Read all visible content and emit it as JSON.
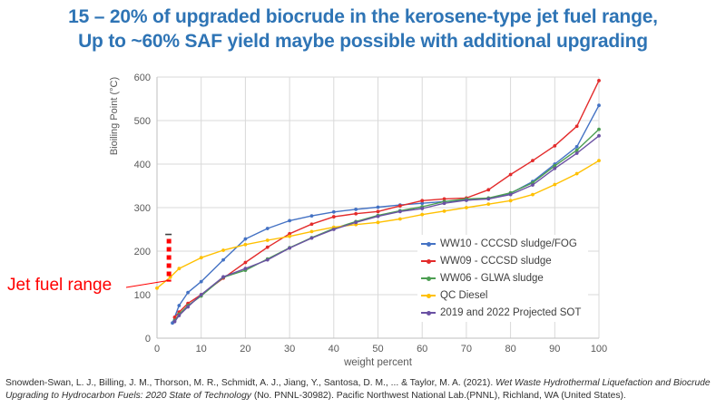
{
  "slide": {
    "title_line1": "15 – 20% of upgraded biocrude in the kerosene-type jet fuel range,",
    "title_line2": "Up to ~60% SAF yield maybe possible with additional upgrading"
  },
  "citation": {
    "part1": "Snowden-Swan, L. J., Billing, J. M., Thorson, M. R., Schmidt, A. J., Jiang, Y., Santosa, D. M., ... & Taylor, M. A. (2021). ",
    "italic": "Wet Waste Hydrothermal Liquefaction and Biocrude Upgrading to Hydrocarbon Fuels: 2020 State of Technology",
    "part2": " (No. PNNL-30982). Pacific Northwest National Lab.(PNNL), Richland, WA (United States)."
  },
  "chart_data": {
    "type": "line",
    "title": "",
    "xlabel": "weight percent",
    "ylabel": "Bioiling Point (°C)",
    "xlim": [
      0,
      100
    ],
    "ylim": [
      0,
      600
    ],
    "xticks": [
      0,
      10,
      20,
      30,
      40,
      50,
      60,
      70,
      80,
      90,
      100
    ],
    "yticks": [
      0,
      100,
      200,
      300,
      400,
      500,
      600
    ],
    "grid": true,
    "legend_position": "inside-right",
    "series": [
      {
        "name": "WW10 - CCCSD sludge/FOG",
        "color": "#4472C4",
        "x": [
          3.5,
          5,
          7,
          10,
          15,
          20,
          25,
          30,
          35,
          40,
          45,
          50,
          55,
          60,
          65,
          70,
          75,
          80,
          85,
          90,
          95,
          100
        ],
        "y": [
          35,
          75,
          105,
          130,
          180,
          228,
          252,
          270,
          281,
          290,
          296,
          301,
          306,
          310,
          314,
          317,
          321,
          333,
          360,
          400,
          440,
          535
        ]
      },
      {
        "name": "WW09 - CCCSD sludge",
        "color": "#E32B2B",
        "x": [
          4,
          5,
          7,
          10,
          15,
          20,
          25,
          30,
          35,
          40,
          45,
          50,
          55,
          60,
          65,
          70,
          75,
          80,
          85,
          90,
          95,
          100
        ],
        "y": [
          48,
          60,
          80,
          100,
          138,
          174,
          209,
          240,
          262,
          279,
          286,
          291,
          304,
          316,
          320,
          322,
          341,
          376,
          408,
          442,
          487,
          592
        ]
      },
      {
        "name": "WW06 - GLWA sludge",
        "color": "#4C9E52",
        "x": [
          4,
          5,
          7,
          10,
          15,
          20,
          25,
          30,
          35,
          40,
          45,
          50,
          55,
          60,
          65,
          70,
          75,
          80,
          85,
          90,
          95,
          100
        ],
        "y": [
          40,
          55,
          75,
          97,
          140,
          156,
          182,
          208,
          231,
          252,
          268,
          282,
          293,
          302,
          314,
          320,
          322,
          334,
          357,
          396,
          432,
          480
        ]
      },
      {
        "name": "QC Diesel",
        "color": "#FFC000",
        "x": [
          0,
          3,
          5,
          10,
          15,
          20,
          25,
          30,
          35,
          40,
          45,
          50,
          55,
          60,
          65,
          70,
          75,
          80,
          85,
          90,
          95,
          100
        ],
        "y": [
          115,
          140,
          160,
          185,
          202,
          215,
          225,
          234,
          245,
          255,
          261,
          266,
          274,
          284,
          292,
          300,
          308,
          316,
          330,
          353,
          378,
          408
        ]
      },
      {
        "name": "2019 and 2022 Projected SOT",
        "color": "#6A51A3",
        "x": [
          4,
          5,
          7,
          10,
          15,
          20,
          25,
          30,
          35,
          40,
          45,
          50,
          55,
          60,
          65,
          70,
          75,
          80,
          85,
          90,
          95,
          100
        ],
        "y": [
          38,
          52,
          72,
          100,
          141,
          160,
          180,
          207,
          230,
          250,
          266,
          280,
          291,
          298,
          310,
          317,
          320,
          330,
          352,
          390,
          425,
          465
        ]
      }
    ],
    "annotation": {
      "label": "Jet fuel range",
      "color": "#FF0000",
      "marker_x": 2.7,
      "marker_y_range": [
        130,
        228
      ]
    }
  }
}
